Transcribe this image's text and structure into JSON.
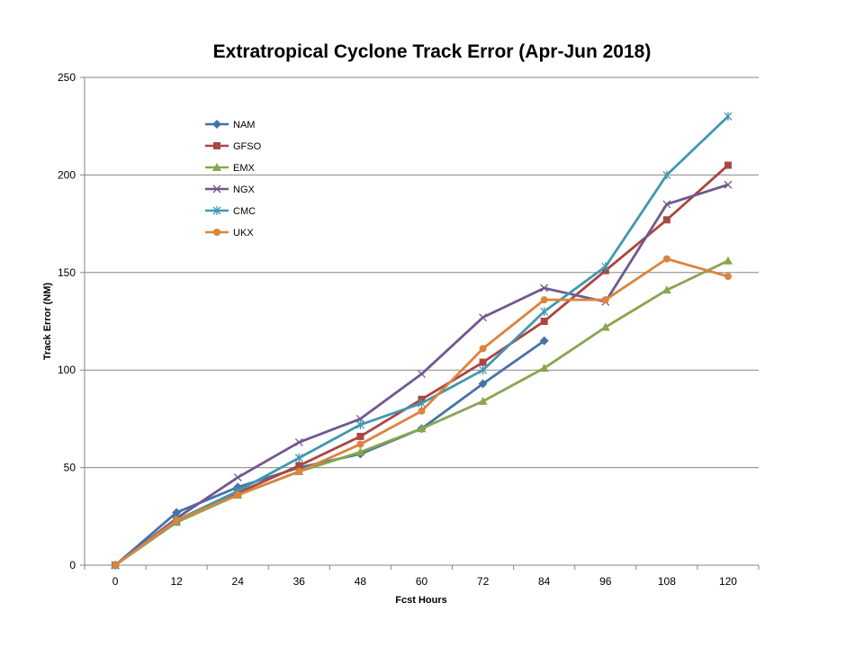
{
  "chart_data": {
    "type": "line",
    "title": "Extratropical Cyclone Track Error (Apr-Jun 2018)",
    "xlabel": "Fcst Hours",
    "ylabel": "Track Error  (NM)",
    "categories": [
      "0",
      "12",
      "24",
      "36",
      "48",
      "60",
      "72",
      "84",
      "96",
      "108",
      "120"
    ],
    "ylim": [
      0,
      250
    ],
    "yticks": [
      0,
      50,
      100,
      150,
      200,
      250
    ],
    "grid": true,
    "legend_position": "top-left",
    "series": [
      {
        "name": "NAM",
        "color": "#4572a7",
        "marker": "diamond",
        "values": [
          0,
          27,
          40,
          50,
          57,
          70,
          93,
          115,
          null,
          null,
          null
        ]
      },
      {
        "name": "GFSO",
        "color": "#aa4643",
        "marker": "square",
        "values": [
          0,
          23,
          37,
          51,
          66,
          85,
          104,
          125,
          151,
          177,
          205
        ]
      },
      {
        "name": "EMX",
        "color": "#89a54e",
        "marker": "triangle",
        "values": [
          0,
          22,
          36,
          48,
          58,
          70,
          84,
          101,
          122,
          141,
          156
        ]
      },
      {
        "name": "NGX",
        "color": "#71588f",
        "marker": "x",
        "values": [
          0,
          24,
          45,
          63,
          75,
          98,
          127,
          142,
          135,
          185,
          195
        ]
      },
      {
        "name": "CMC",
        "color": "#4198af",
        "marker": "asterisk",
        "values": [
          0,
          23,
          38,
          55,
          72,
          83,
          100,
          130,
          153,
          200,
          230
        ]
      },
      {
        "name": "UKX",
        "color": "#db843d",
        "marker": "circle",
        "values": [
          0,
          23,
          36,
          48,
          62,
          79,
          111,
          136,
          136,
          157,
          148
        ]
      }
    ]
  }
}
